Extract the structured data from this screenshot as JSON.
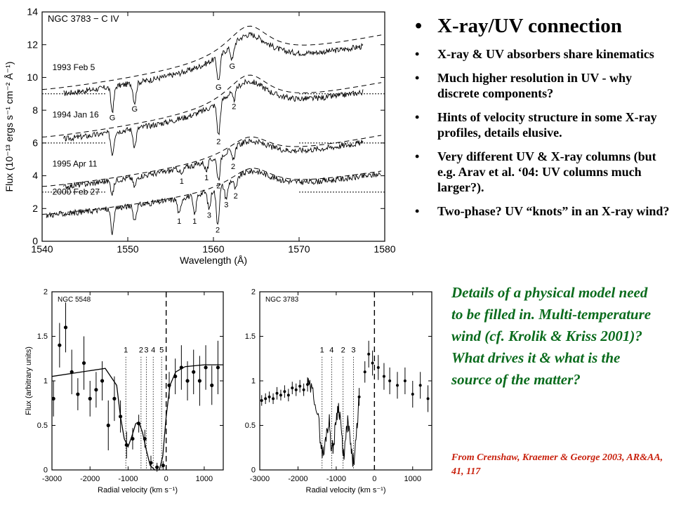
{
  "slide": {
    "heading": "X-ray/UV connection",
    "bullets": [
      "X-ray & UV absorbers share kinematics",
      "Much higher resolution in UV - why discrete components?",
      "Hints of velocity structure in some X-ray profiles, details elusive.",
      "Very different UV & X-ray columns (but e.g. Arav et al. ‘04: UV columns much larger?).",
      "Two-phase? UV “knots” in an X-ray wind?"
    ],
    "note": "Details of a physical model need to be filled in. Multi-temperature wind (cf. Krolik & Kriss 2001)? What drives it & what is the source of the matter?",
    "citation": "From Crenshaw, Kraemer & George 2003, AR&AA, 41, 117",
    "colors": {
      "note": "#0a6b1c",
      "citation": "#c8200c",
      "text": "#000000"
    }
  },
  "chart_data": [
    {
      "type": "line",
      "title": "NGC 3783 − C IV",
      "xlabel": "Wavelength (Å)",
      "ylabel": "Flux (10⁻¹³ ergs s⁻¹ cm⁻² Å⁻¹)",
      "xlim": [
        1540,
        1580
      ],
      "ylim": [
        0,
        14
      ],
      "xticks": [
        1540,
        1550,
        1560,
        1570,
        1580
      ],
      "yticks": [
        0,
        2,
        4,
        6,
        8,
        10,
        12,
        14
      ],
      "series": [
        {
          "name": "1993 Feb 5",
          "continuum": [
            9.2,
            12.6
          ],
          "peak_x": 1564.2,
          "peak_y": 13.5,
          "zero": 9.0,
          "absorptions": [
            {
              "x": 1548.2,
              "depth": 1.5,
              "label": "G"
            },
            {
              "x": 1550.8,
              "depth": 1.2,
              "label": "G"
            },
            {
              "x": 1560.6,
              "depth": 1.5,
              "label": "G"
            },
            {
              "x": 1562.2,
              "depth": 0.9,
              "label": "G"
            }
          ]
        },
        {
          "name": "1994 Jan 16",
          "continuum": [
            6.3,
            9.7
          ],
          "peak_x": 1564.2,
          "peak_y": 10.5,
          "zero": 6.0,
          "absorptions": [
            {
              "x": 1548.2,
              "depth": 1.3,
              "label": ""
            },
            {
              "x": 1550.8,
              "depth": 1.1,
              "label": ""
            },
            {
              "x": 1560.6,
              "depth": 2.0,
              "label": "2"
            },
            {
              "x": 1562.4,
              "depth": 0.6,
              "label": "2"
            }
          ]
        },
        {
          "name": "1995 Apr 11",
          "continuum": [
            3.3,
            6.5
          ],
          "peak_x": 1564.4,
          "peak_y": 6.6,
          "zero": 3.0,
          "absorptions": [
            {
              "x": 1548.2,
              "depth": 0.8,
              "label": ""
            },
            {
              "x": 1550.8,
              "depth": 0.6,
              "label": ""
            },
            {
              "x": 1556.3,
              "depth": 0.4,
              "label": "1"
            },
            {
              "x": 1559.2,
              "depth": 0.6,
              "label": "1"
            },
            {
              "x": 1560.6,
              "depth": 1.4,
              "label": "2"
            },
            {
              "x": 1562.3,
              "depth": 0.7,
              "label": "2"
            }
          ]
        },
        {
          "name": "2000 Feb 27",
          "continuum": [
            1.6,
            4.3
          ],
          "peak_x": 1564.6,
          "peak_y": 4.7,
          "zero": 0,
          "absorptions": [
            {
              "x": 1548.2,
              "depth": 1.5,
              "label": ""
            },
            {
              "x": 1550.8,
              "depth": 0.9,
              "label": ""
            },
            {
              "x": 1556.0,
              "depth": 1.0,
              "label": "1"
            },
            {
              "x": 1557.8,
              "depth": 1.2,
              "label": "1"
            },
            {
              "x": 1559.5,
              "depth": 1.1,
              "label": "3"
            },
            {
              "x": 1560.5,
              "depth": 2.2,
              "label": "2"
            },
            {
              "x": 1561.5,
              "depth": 0.9,
              "label": "3"
            },
            {
              "x": 1562.6,
              "depth": 0.7,
              "label": "2"
            }
          ]
        }
      ]
    },
    {
      "type": "scatter",
      "title": "NGC 5548",
      "xlabel": "Radial velocity (km s⁻¹)",
      "ylabel": "Flux (arbitrary units)",
      "xlim": [
        -3000,
        1500
      ],
      "ylim": [
        0,
        2
      ],
      "xticks": [
        -3000,
        -2000,
        -1000,
        0,
        1000
      ],
      "yticks": [
        0,
        0.5,
        1,
        1.5,
        2
      ],
      "components": [
        {
          "label": "1",
          "v": -1060
        },
        {
          "label": "2",
          "v": -660
        },
        {
          "label": "3",
          "v": -520
        },
        {
          "label": "4",
          "v": -340
        },
        {
          "label": "5",
          "v": -120
        }
      ],
      "zero_velocity_line": 0,
      "points": [
        {
          "x": -2960,
          "y": 0.8,
          "err": 0.2
        },
        {
          "x": -2800,
          "y": 1.4,
          "err": 0.25
        },
        {
          "x": -2640,
          "y": 1.6,
          "err": 0.28
        },
        {
          "x": -2480,
          "y": 1.1,
          "err": 0.25
        },
        {
          "x": -2320,
          "y": 0.85,
          "err": 0.18
        },
        {
          "x": -2160,
          "y": 1.2,
          "err": 0.3
        },
        {
          "x": -2000,
          "y": 0.8,
          "err": 0.2
        },
        {
          "x": -1840,
          "y": 0.9,
          "err": 0.2
        },
        {
          "x": -1680,
          "y": 1.0,
          "err": 0.22
        },
        {
          "x": -1520,
          "y": 0.5,
          "err": 0.28
        },
        {
          "x": -1360,
          "y": 0.8,
          "err": 0.25
        },
        {
          "x": -1200,
          "y": 0.6,
          "err": 0.18
        },
        {
          "x": -1040,
          "y": 0.28,
          "err": 0.15
        },
        {
          "x": -880,
          "y": 0.35,
          "err": 0.12
        },
        {
          "x": -720,
          "y": 0.52,
          "err": 0.1
        },
        {
          "x": -560,
          "y": 0.35,
          "err": 0.1
        },
        {
          "x": -400,
          "y": 0.08,
          "err": 0.08
        },
        {
          "x": -240,
          "y": 0.03,
          "err": 0.05
        },
        {
          "x": -80,
          "y": 0.05,
          "err": 0.05
        },
        {
          "x": 80,
          "y": 0.95,
          "err": 0.15
        },
        {
          "x": 240,
          "y": 1.05,
          "err": 0.2
        },
        {
          "x": 400,
          "y": 1.15,
          "err": 0.25
        },
        {
          "x": 560,
          "y": 1.0,
          "err": 0.22
        },
        {
          "x": 720,
          "y": 1.1,
          "err": 0.25
        },
        {
          "x": 880,
          "y": 1.0,
          "err": 0.28
        },
        {
          "x": 1040,
          "y": 1.15,
          "err": 0.25
        },
        {
          "x": 1200,
          "y": 0.95,
          "err": 0.22
        },
        {
          "x": 1360,
          "y": 1.15,
          "err": 0.3
        }
      ],
      "model": [
        [
          -3000,
          1.05
        ],
        [
          -1600,
          1.14
        ],
        [
          -1300,
          0.95
        ],
        [
          -1200,
          0.6
        ],
        [
          -1100,
          0.35
        ],
        [
          -1000,
          0.26
        ],
        [
          -900,
          0.38
        ],
        [
          -800,
          0.52
        ],
        [
          -720,
          0.54
        ],
        [
          -620,
          0.42
        ],
        [
          -520,
          0.22
        ],
        [
          -420,
          0.05
        ],
        [
          -300,
          0.0
        ],
        [
          -180,
          0.0
        ],
        [
          -90,
          0.15
        ],
        [
          0,
          0.6
        ],
        [
          100,
          0.95
        ],
        [
          250,
          1.1
        ],
        [
          500,
          1.16
        ],
        [
          1000,
          1.18
        ],
        [
          1500,
          1.18
        ]
      ]
    },
    {
      "type": "line",
      "title": "NGC 3783",
      "xlabel": "Radial velocity (km s⁻¹)",
      "ylabel": "",
      "xlim": [
        -3000,
        1500
      ],
      "ylim": [
        0,
        2
      ],
      "xticks": [
        -3000,
        -2000,
        -1000,
        0,
        1000
      ],
      "yticks": [
        0,
        0.5,
        1,
        1.5,
        2
      ],
      "components": [
        {
          "label": "1",
          "v": -1370
        },
        {
          "label": "4",
          "v": -1120
        },
        {
          "label": "2",
          "v": -820
        },
        {
          "label": "3",
          "v": -550
        }
      ],
      "zero_velocity_line": 0,
      "points": [
        {
          "x": -2950,
          "y": 0.78,
          "err": 0.06
        },
        {
          "x": -2850,
          "y": 0.8,
          "err": 0.06
        },
        {
          "x": -2750,
          "y": 0.82,
          "err": 0.06
        },
        {
          "x": -2650,
          "y": 0.8,
          "err": 0.06
        },
        {
          "x": -2550,
          "y": 0.86,
          "err": 0.07
        },
        {
          "x": -2450,
          "y": 0.84,
          "err": 0.06
        },
        {
          "x": -2350,
          "y": 0.88,
          "err": 0.07
        },
        {
          "x": -2250,
          "y": 0.84,
          "err": 0.07
        },
        {
          "x": -2150,
          "y": 0.92,
          "err": 0.07
        },
        {
          "x": -2050,
          "y": 0.9,
          "err": 0.07
        },
        {
          "x": -1950,
          "y": 0.94,
          "err": 0.07
        },
        {
          "x": -1850,
          "y": 0.9,
          "err": 0.07
        },
        {
          "x": -1750,
          "y": 0.96,
          "err": 0.08
        },
        {
          "x": -400,
          "y": 0.82,
          "err": 0.1
        },
        {
          "x": -250,
          "y": 1.1,
          "err": 0.12
        },
        {
          "x": -150,
          "y": 1.3,
          "err": 0.15
        },
        {
          "x": -50,
          "y": 1.2,
          "err": 0.14
        },
        {
          "x": 100,
          "y": 1.15,
          "err": 0.14
        },
        {
          "x": 250,
          "y": 1.05,
          "err": 0.15
        },
        {
          "x": 400,
          "y": 1.0,
          "err": 0.15
        },
        {
          "x": 600,
          "y": 0.95,
          "err": 0.15
        },
        {
          "x": 800,
          "y": 1.0,
          "err": 0.15
        },
        {
          "x": 1000,
          "y": 0.85,
          "err": 0.15
        },
        {
          "x": 1200,
          "y": 0.95,
          "err": 0.15
        },
        {
          "x": 1400,
          "y": 0.8,
          "err": 0.15
        }
      ],
      "model": [
        [
          -1750,
          0.96
        ],
        [
          -1650,
          0.9
        ],
        [
          -1550,
          0.8
        ],
        [
          -1450,
          0.5
        ],
        [
          -1380,
          0.22
        ],
        [
          -1320,
          0.18
        ],
        [
          -1250,
          0.45
        ],
        [
          -1180,
          0.55
        ],
        [
          -1120,
          0.22
        ],
        [
          -1060,
          0.3
        ],
        [
          -1000,
          0.6
        ],
        [
          -940,
          0.72
        ],
        [
          -880,
          0.55
        ],
        [
          -820,
          0.12
        ],
        [
          -760,
          0.3
        ],
        [
          -700,
          0.55
        ],
        [
          -640,
          0.35
        ],
        [
          -580,
          0.1
        ],
        [
          -520,
          0.12
        ],
        [
          -460,
          0.45
        ],
        [
          -400,
          0.82
        ]
      ]
    }
  ]
}
